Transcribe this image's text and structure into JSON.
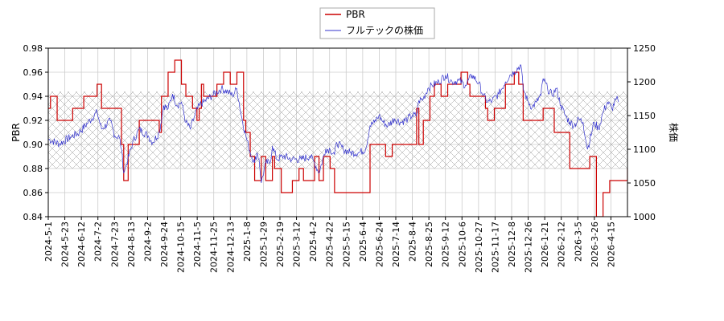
{
  "chart_data": {
    "type": "line",
    "ylabel_left": "PBR",
    "ylabel_right": "株価",
    "legend": [
      "PBR",
      "フルテックの株価"
    ],
    "legend_position": "top-center",
    "grid": true,
    "ylim_left": [
      0.84,
      0.98
    ],
    "ylim_right": [
      1000,
      1250
    ],
    "yticks_left": [
      "0.84",
      "0.86",
      "0.88",
      "0.90",
      "0.92",
      "0.94",
      "0.96",
      "0.98"
    ],
    "yticks_right": [
      "1000",
      "1050",
      "1100",
      "1150",
      "1200",
      "1250"
    ],
    "xticks": [
      "2024-5-1",
      "2024-5-23",
      "2024-6-12",
      "2024-7-2",
      "2024-7-23",
      "2024-8-13",
      "2024-9-2",
      "2024-9-24",
      "2024-10-15",
      "2024-11-5",
      "2024-11-25",
      "2024-12-13",
      "2025-1-8",
      "2025-1-29",
      "2025-2-19",
      "2025-3-12",
      "2025-4-2",
      "2025-4-22",
      "2025-5-15",
      "2025-6-4",
      "2025-6-24",
      "2025-7-14",
      "2025-8-4",
      "2025-8-25",
      "2025-9-12",
      "2025-10-6",
      "2025-10-27",
      "2025-11-17",
      "2025-12-8",
      "2025-12-26",
      "2026-1-21",
      "2026-2-12",
      "2026-3-5",
      "2026-3-26",
      "2026-4-15"
    ],
    "band_left": [
      0.88,
      0.944
    ],
    "colors": {
      "PBR": "#cc0000",
      "price": "#3333cc"
    },
    "series": [
      {
        "name": "PBR",
        "axis": "left",
        "points": [
          [
            0,
            0.93
          ],
          [
            1,
            0.94
          ],
          [
            3,
            0.94
          ],
          [
            4,
            0.92
          ],
          [
            10,
            0.92
          ],
          [
            11,
            0.93
          ],
          [
            15,
            0.93
          ],
          [
            16,
            0.94
          ],
          [
            21,
            0.94
          ],
          [
            22,
            0.95
          ],
          [
            23,
            0.95
          ],
          [
            24,
            0.93
          ],
          [
            32,
            0.93
          ],
          [
            33,
            0.9
          ],
          [
            34,
            0.87
          ],
          [
            35,
            0.87
          ],
          [
            36,
            0.9
          ],
          [
            40,
            0.9
          ],
          [
            41,
            0.92
          ],
          [
            49,
            0.92
          ],
          [
            50,
            0.91
          ],
          [
            51,
            0.94
          ],
          [
            54,
            0.96
          ],
          [
            56,
            0.96
          ],
          [
            57,
            0.97
          ],
          [
            59,
            0.97
          ],
          [
            60,
            0.95
          ],
          [
            61,
            0.95
          ],
          [
            62,
            0.94
          ],
          [
            64,
            0.94
          ],
          [
            65,
            0.93
          ],
          [
            66,
            0.93
          ],
          [
            67,
            0.92
          ],
          [
            68,
            0.93
          ],
          [
            69,
            0.95
          ],
          [
            70,
            0.94
          ],
          [
            75,
            0.94
          ],
          [
            76,
            0.95
          ],
          [
            78,
            0.95
          ],
          [
            79,
            0.96
          ],
          [
            81,
            0.96
          ],
          [
            82,
            0.95
          ],
          [
            84,
            0.95
          ],
          [
            85,
            0.96
          ],
          [
            87,
            0.96
          ],
          [
            88,
            0.92
          ],
          [
            89,
            0.91
          ],
          [
            90,
            0.91
          ],
          [
            91,
            0.89
          ],
          [
            93,
            0.87
          ],
          [
            95,
            0.87
          ],
          [
            96,
            0.89
          ],
          [
            97,
            0.89
          ],
          [
            98,
            0.87
          ],
          [
            100,
            0.87
          ],
          [
            101,
            0.89
          ],
          [
            102,
            0.88
          ],
          [
            104,
            0.88
          ],
          [
            105,
            0.86
          ],
          [
            109,
            0.86
          ],
          [
            110,
            0.87
          ],
          [
            112,
            0.87
          ],
          [
            113,
            0.88
          ],
          [
            114,
            0.88
          ],
          [
            115,
            0.87
          ],
          [
            119,
            0.87
          ],
          [
            120,
            0.89
          ],
          [
            121,
            0.89
          ],
          [
            122,
            0.87
          ],
          [
            123,
            0.87
          ],
          [
            124,
            0.89
          ],
          [
            126,
            0.89
          ],
          [
            127,
            0.88
          ],
          [
            128,
            0.88
          ],
          [
            129,
            0.86
          ],
          [
            144,
            0.86
          ],
          [
            145,
            0.9
          ],
          [
            151,
            0.9
          ],
          [
            152,
            0.89
          ],
          [
            154,
            0.89
          ],
          [
            155,
            0.9
          ],
          [
            165,
            0.9
          ],
          [
            166,
            0.93
          ],
          [
            167,
            0.9
          ],
          [
            168,
            0.9
          ],
          [
            169,
            0.92
          ],
          [
            171,
            0.92
          ],
          [
            172,
            0.94
          ],
          [
            174,
            0.95
          ],
          [
            176,
            0.95
          ],
          [
            177,
            0.94
          ],
          [
            179,
            0.94
          ],
          [
            180,
            0.95
          ],
          [
            185,
            0.95
          ],
          [
            186,
            0.96
          ],
          [
            188,
            0.96
          ],
          [
            189,
            0.95
          ],
          [
            190,
            0.94
          ],
          [
            196,
            0.94
          ],
          [
            197,
            0.93
          ],
          [
            198,
            0.92
          ],
          [
            200,
            0.92
          ],
          [
            201,
            0.93
          ],
          [
            205,
            0.93
          ],
          [
            206,
            0.95
          ],
          [
            209,
            0.95
          ],
          [
            210,
            0.96
          ],
          [
            211,
            0.96
          ],
          [
            212,
            0.95
          ],
          [
            213,
            0.95
          ],
          [
            214,
            0.92
          ],
          [
            222,
            0.92
          ],
          [
            223,
            0.93
          ],
          [
            227,
            0.93
          ],
          [
            228,
            0.91
          ],
          [
            234,
            0.91
          ],
          [
            235,
            0.88
          ],
          [
            243,
            0.88
          ],
          [
            244,
            0.89
          ],
          [
            246,
            0.89
          ],
          [
            247,
            0.84
          ],
          [
            249,
            0.84
          ],
          [
            250,
            0.86
          ],
          [
            252,
            0.86
          ],
          [
            253,
            0.87
          ],
          [
            260,
            0.87
          ],
          [
            261,
            0.88
          ]
        ]
      },
      {
        "name": "フルテックの株価",
        "axis": "right",
        "points": [
          [
            0,
            1115
          ],
          [
            5,
            1108
          ],
          [
            10,
            1118
          ],
          [
            14,
            1125
          ],
          [
            18,
            1140
          ],
          [
            22,
            1155
          ],
          [
            24,
            1130
          ],
          [
            28,
            1142
          ],
          [
            30,
            1120
          ],
          [
            32,
            1118
          ],
          [
            33,
            1100
          ],
          [
            34,
            1065
          ],
          [
            35,
            1075
          ],
          [
            38,
            1110
          ],
          [
            41,
            1130
          ],
          [
            45,
            1120
          ],
          [
            47,
            1110
          ],
          [
            50,
            1125
          ],
          [
            52,
            1165
          ],
          [
            54,
            1160
          ],
          [
            56,
            1182
          ],
          [
            58,
            1165
          ],
          [
            60,
            1170
          ],
          [
            62,
            1140
          ],
          [
            64,
            1130
          ],
          [
            66,
            1150
          ],
          [
            68,
            1165
          ],
          [
            70,
            1170
          ],
          [
            74,
            1180
          ],
          [
            76,
            1185
          ],
          [
            78,
            1190
          ],
          [
            81,
            1185
          ],
          [
            83,
            1180
          ],
          [
            85,
            1190
          ],
          [
            87,
            1150
          ],
          [
            89,
            1120
          ],
          [
            91,
            1095
          ],
          [
            93,
            1080
          ],
          [
            94,
            1095
          ],
          [
            95,
            1085
          ],
          [
            96,
            1050
          ],
          [
            98,
            1080
          ],
          [
            100,
            1080
          ],
          [
            101,
            1105
          ],
          [
            103,
            1085
          ],
          [
            106,
            1090
          ],
          [
            110,
            1085
          ],
          [
            114,
            1085
          ],
          [
            118,
            1090
          ],
          [
            120,
            1080
          ],
          [
            122,
            1065
          ],
          [
            125,
            1100
          ],
          [
            127,
            1100
          ],
          [
            129,
            1092
          ],
          [
            130,
            1110
          ],
          [
            133,
            1100
          ],
          [
            136,
            1095
          ],
          [
            140,
            1095
          ],
          [
            143,
            1100
          ],
          [
            145,
            1135
          ],
          [
            147,
            1140
          ],
          [
            149,
            1150
          ],
          [
            151,
            1140
          ],
          [
            153,
            1135
          ],
          [
            156,
            1145
          ],
          [
            159,
            1140
          ],
          [
            162,
            1145
          ],
          [
            164,
            1150
          ],
          [
            166,
            1150
          ],
          [
            167,
            1172
          ],
          [
            169,
            1175
          ],
          [
            171,
            1190
          ],
          [
            173,
            1195
          ],
          [
            176,
            1200
          ],
          [
            179,
            1210
          ],
          [
            182,
            1200
          ],
          [
            185,
            1202
          ],
          [
            188,
            1195
          ],
          [
            191,
            1210
          ],
          [
            194,
            1198
          ],
          [
            196,
            1180
          ],
          [
            198,
            1170
          ],
          [
            200,
            1172
          ],
          [
            203,
            1182
          ],
          [
            206,
            1200
          ],
          [
            208,
            1210
          ],
          [
            210,
            1215
          ],
          [
            213,
            1225
          ],
          [
            214,
            1190
          ],
          [
            216,
            1172
          ],
          [
            218,
            1162
          ],
          [
            220,
            1170
          ],
          [
            222,
            1180
          ],
          [
            223,
            1205
          ],
          [
            225,
            1190
          ],
          [
            227,
            1180
          ],
          [
            229,
            1190
          ],
          [
            231,
            1165
          ],
          [
            233,
            1150
          ],
          [
            235,
            1140
          ],
          [
            237,
            1135
          ],
          [
            239,
            1145
          ],
          [
            241,
            1140
          ],
          [
            243,
            1100
          ],
          [
            246,
            1140
          ],
          [
            248,
            1130
          ],
          [
            250,
            1155
          ],
          [
            252,
            1170
          ],
          [
            254,
            1160
          ],
          [
            256,
            1175
          ],
          [
            257,
            1170
          ]
        ]
      }
    ]
  }
}
